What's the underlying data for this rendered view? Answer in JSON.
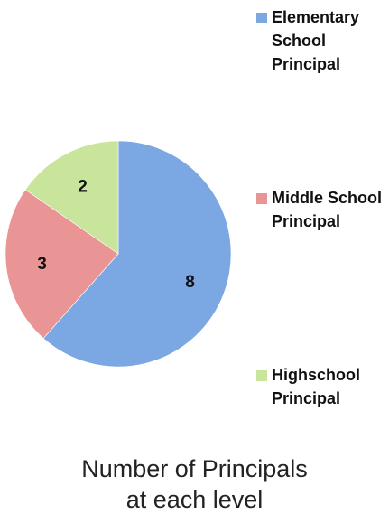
{
  "chart_data": {
    "type": "pie",
    "title": "Number of Principals\nat each level",
    "categories": [
      "Elementary\nSchool\nPrincipal",
      "Middle School\nPrincipal",
      "Highschool\nPrincipal"
    ],
    "values": [
      8,
      3,
      2
    ],
    "data_labels": [
      "8",
      "3",
      "2"
    ],
    "colors": [
      "#7ba7e3",
      "#e99595",
      "#c9e59b"
    ],
    "start": "top",
    "direction": "clockwise",
    "legend": "right"
  }
}
